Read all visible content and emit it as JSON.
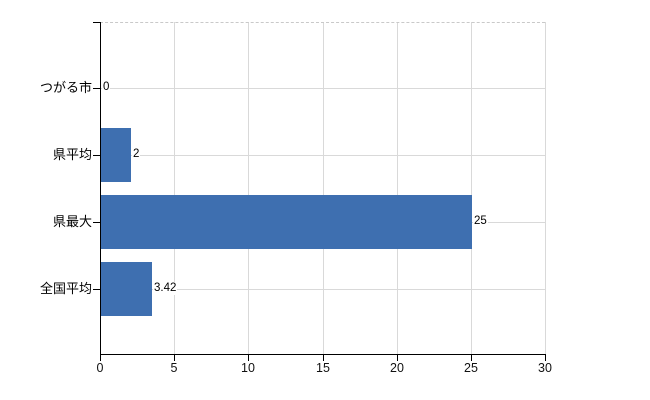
{
  "chart_data": {
    "type": "bar",
    "orientation": "horizontal",
    "title": "",
    "xlabel": "",
    "ylabel": "",
    "categories": [
      "つがる市",
      "県平均",
      "県最大",
      "全国平均"
    ],
    "values": [
      0,
      2,
      25,
      3.42
    ],
    "value_labels": [
      "0",
      "2",
      "25",
      "3.42"
    ],
    "x_ticks": [
      0,
      5,
      10,
      15,
      20,
      25,
      30
    ],
    "x_tick_labels": [
      "0",
      "5",
      "10",
      "15",
      "20",
      "25",
      "30"
    ],
    "xlim": [
      0,
      30
    ],
    "grid": true,
    "legend": false,
    "colors": {
      "bar": "#3e6fb0",
      "grid": "#d9d9d9",
      "plot_top_border": "#c9c9c9",
      "axis": "#000000",
      "text": "#000000",
      "background": "#ffffff"
    }
  }
}
